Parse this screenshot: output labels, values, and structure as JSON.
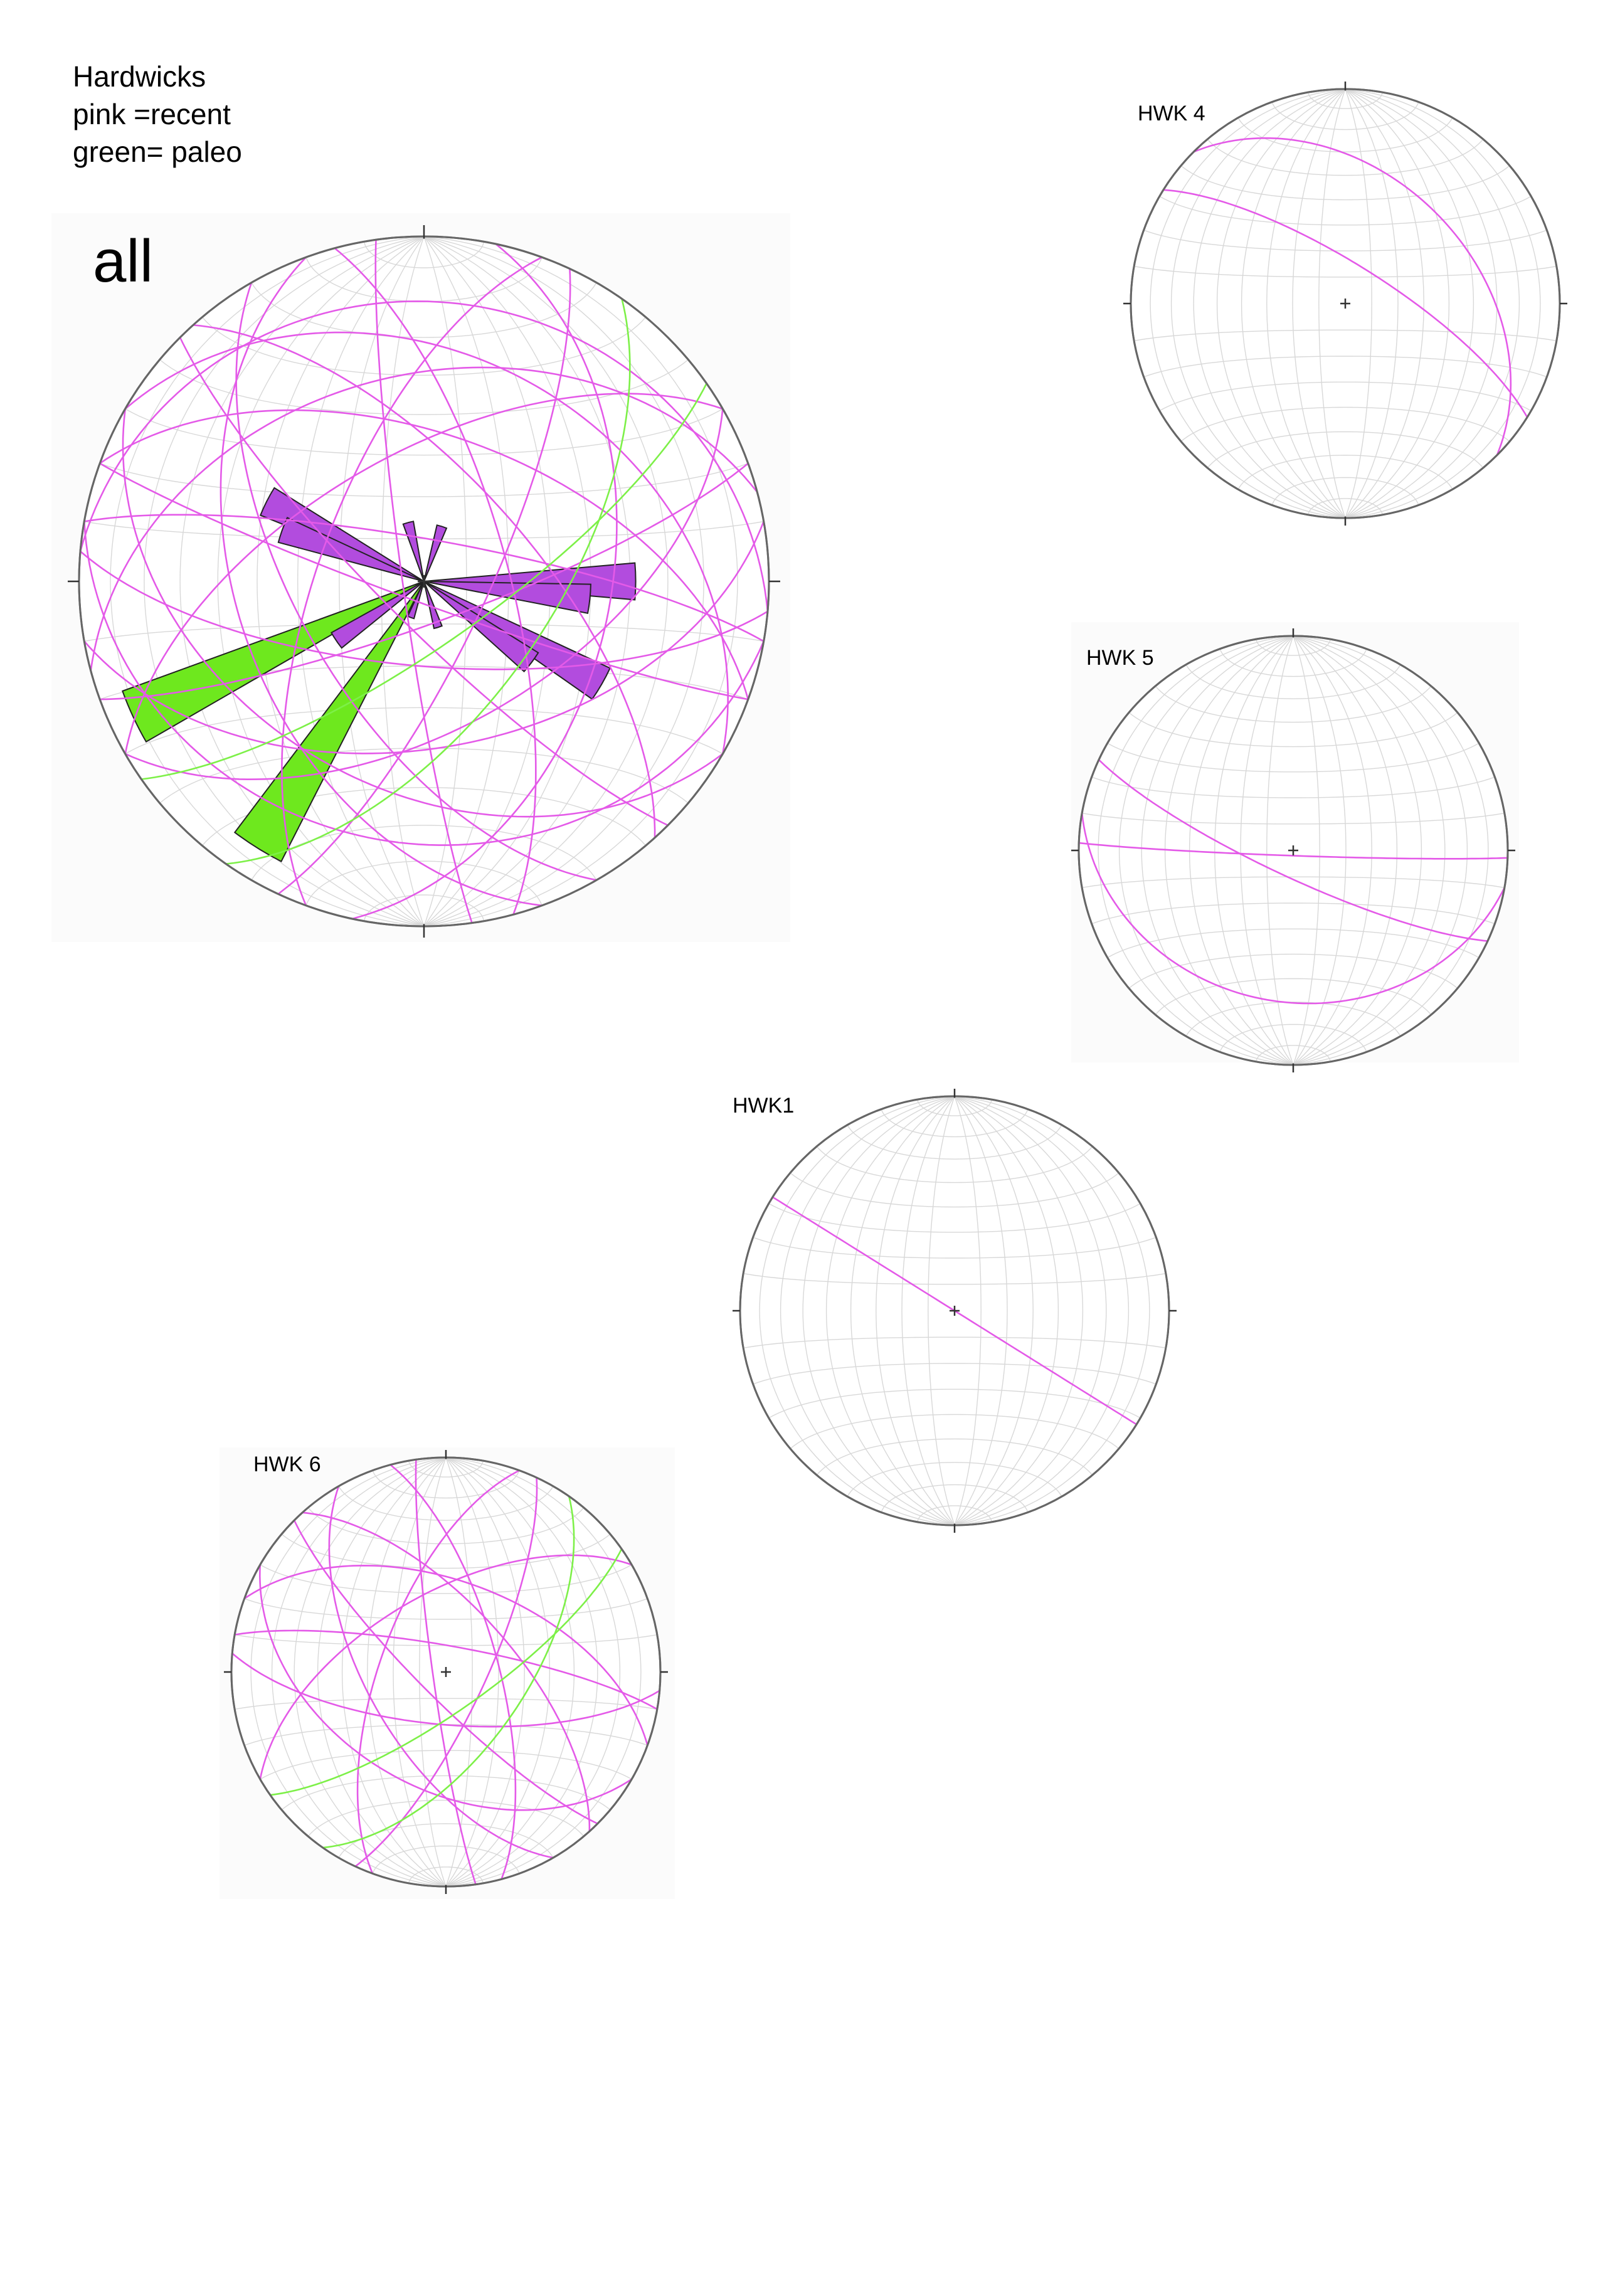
{
  "header": {
    "line1": "Hardwicks",
    "line2": "pink =recent",
    "line3": "green= paleo"
  },
  "colors": {
    "recent_planes": "#e45ae8",
    "paleo_planes": "#7df048",
    "recent_rose": "#b24cde",
    "paleo_rose": "#6ee81e",
    "primitive_circle": "#666666",
    "net_grid": "#d8d8d8"
  },
  "stereonets": [
    {
      "id": "all",
      "label": "all",
      "rose_diagram": true,
      "recent_petals": [
        {
          "azimuth": 297,
          "length": 0.55
        },
        {
          "azimuth": 290,
          "length": 0.47
        },
        {
          "azimuth": 90,
          "length": 0.66
        },
        {
          "azimuth": 96,
          "length": 0.52
        },
        {
          "azimuth": 120,
          "length": 0.64
        },
        {
          "azimuth": 127,
          "length": 0.42
        },
        {
          "azimuth": 236,
          "length": 0.33
        },
        {
          "azimuth": 18,
          "length": 0.18
        },
        {
          "azimuth": 345,
          "length": 0.19
        },
        {
          "azimuth": 163,
          "length": 0.15
        },
        {
          "azimuth": 200,
          "length": 0.12
        }
      ],
      "paleo_petals": [
        {
          "azimuth": 245,
          "length": 1.0
        },
        {
          "azimuth": 212,
          "length": 0.98
        }
      ],
      "great_circles_recent": [
        {
          "strike": 172,
          "dip": 85
        },
        {
          "strike": 25,
          "dip": 75
        },
        {
          "strike": 150,
          "dip": 60
        },
        {
          "strike": 120,
          "dip": 40
        },
        {
          "strike": 300,
          "dip": 35
        },
        {
          "strike": 290,
          "dip": 55
        },
        {
          "strike": 95,
          "dip": 70
        },
        {
          "strike": 80,
          "dip": 50
        },
        {
          "strike": 280,
          "dip": 80
        },
        {
          "strike": 60,
          "dip": 55
        },
        {
          "strike": 200,
          "dip": 65
        },
        {
          "strike": 318,
          "dip": 65
        },
        {
          "strike": 135,
          "dip": 80
        },
        {
          "strike": 345,
          "dip": 70
        },
        {
          "strike": 110,
          "dip": 85
        },
        {
          "strike": 255,
          "dip": 40
        },
        {
          "strike": 100,
          "dip": 25
        },
        {
          "strike": 240,
          "dip": 60
        },
        {
          "strike": 160,
          "dip": 45
        },
        {
          "strike": 12,
          "dip": 45
        },
        {
          "strike": 275,
          "dip": 20
        },
        {
          "strike": 70,
          "dip": 80
        }
      ],
      "great_circles_paleo": [
        {
          "strike": 35,
          "dip": 60
        },
        {
          "strike": 55,
          "dip": 75
        }
      ]
    },
    {
      "id": "hwk4",
      "label": "HWK 4",
      "great_circles_recent": [
        {
          "strike": 302,
          "dip": 75
        },
        {
          "strike": 315,
          "dip": 40
        }
      ],
      "great_circles_paleo": []
    },
    {
      "id": "hwk5",
      "label": "HWK 5",
      "great_circles_recent": [
        {
          "strike": 92,
          "dip": 88
        },
        {
          "strike": 100,
          "dip": 30
        },
        {
          "strike": 115,
          "dip": 80
        }
      ],
      "great_circles_paleo": []
    },
    {
      "id": "hwk1",
      "label": "HWK1",
      "great_circles_recent": [
        {
          "strike": 302,
          "dip": 90
        }
      ],
      "great_circles_paleo": []
    },
    {
      "id": "hwk6",
      "label": "HWK 6",
      "great_circles_recent": [
        {
          "strike": 172,
          "dip": 85
        },
        {
          "strike": 150,
          "dip": 60
        },
        {
          "strike": 120,
          "dip": 45
        },
        {
          "strike": 290,
          "dip": 55
        },
        {
          "strike": 95,
          "dip": 70
        },
        {
          "strike": 25,
          "dip": 75
        },
        {
          "strike": 318,
          "dip": 65
        },
        {
          "strike": 200,
          "dip": 65
        },
        {
          "strike": 280,
          "dip": 80
        },
        {
          "strike": 135,
          "dip": 80
        },
        {
          "strike": 345,
          "dip": 70
        },
        {
          "strike": 240,
          "dip": 60
        }
      ],
      "great_circles_paleo": [
        {
          "strike": 35,
          "dip": 60
        },
        {
          "strike": 55,
          "dip": 75
        }
      ]
    }
  ]
}
